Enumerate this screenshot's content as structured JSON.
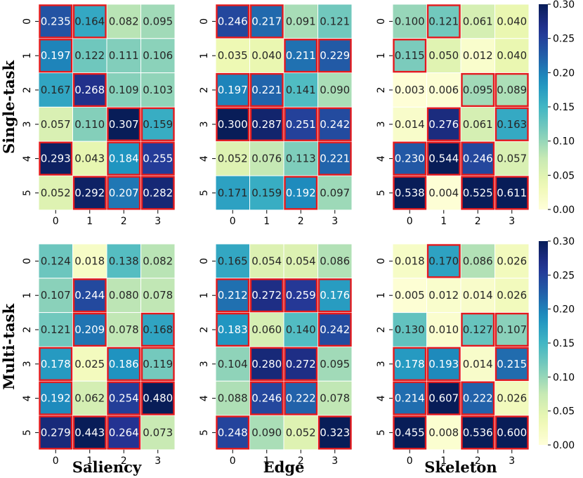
{
  "chart_data": {
    "type": "heatmap",
    "colorscale": {
      "name": "YlGnBu",
      "vmin": 0.0,
      "vmax": 0.3
    },
    "highlight_color": "#e41a1c",
    "x_ticks": [
      "0",
      "1",
      "2",
      "3"
    ],
    "y_ticks": [
      "0",
      "1",
      "2",
      "3",
      "4",
      "5"
    ],
    "colorbar_ticks": [
      "0.00",
      "0.05",
      "0.10",
      "0.15",
      "0.20",
      "0.25",
      "0.30"
    ],
    "row_labels": [
      "Single-task",
      "Multi-task"
    ],
    "col_labels": [
      "Saliency",
      "Edge",
      "Skeleton"
    ],
    "panels": [
      {
        "row": "Single-task",
        "col": "Saliency",
        "values": [
          [
            0.235,
            0.164,
            0.082,
            0.095
          ],
          [
            0.197,
            0.122,
            0.111,
            0.106
          ],
          [
            0.167,
            0.268,
            0.109,
            0.103
          ],
          [
            0.057,
            0.11,
            0.307,
            0.159
          ],
          [
            0.293,
            0.043,
            0.184,
            0.255
          ],
          [
            0.052,
            0.292,
            0.207,
            0.282
          ]
        ],
        "highlighted": [
          [
            1,
            1,
            0,
            0
          ],
          [
            1,
            0,
            0,
            0
          ],
          [
            0,
            1,
            0,
            0
          ],
          [
            0,
            0,
            1,
            1
          ],
          [
            1,
            0,
            1,
            1
          ],
          [
            0,
            1,
            1,
            1
          ]
        ]
      },
      {
        "row": "Single-task",
        "col": "Edge",
        "values": [
          [
            0.246,
            0.217,
            0.091,
            0.121
          ],
          [
            0.035,
            0.04,
            0.211,
            0.229
          ],
          [
            0.197,
            0.221,
            0.141,
            0.09
          ],
          [
            0.3,
            0.287,
            0.251,
            0.242
          ],
          [
            0.052,
            0.076,
            0.113,
            0.221
          ],
          [
            0.171,
            0.159,
            0.192,
            0.097
          ]
        ],
        "highlighted": [
          [
            1,
            1,
            0,
            0
          ],
          [
            0,
            0,
            1,
            1
          ],
          [
            1,
            1,
            0,
            0
          ],
          [
            1,
            1,
            1,
            1
          ],
          [
            0,
            0,
            0,
            1
          ],
          [
            0,
            0,
            1,
            0
          ]
        ]
      },
      {
        "row": "Single-task",
        "col": "Skeleton",
        "values": [
          [
            0.1,
            0.121,
            0.061,
            0.04
          ],
          [
            0.115,
            0.05,
            0.012,
            0.04
          ],
          [
            0.003,
            0.006,
            0.095,
            0.089
          ],
          [
            0.014,
            0.276,
            0.061,
            0.163
          ],
          [
            0.23,
            0.544,
            0.246,
            0.057
          ],
          [
            0.538,
            0.004,
            0.525,
            0.611
          ]
        ],
        "highlighted": [
          [
            0,
            1,
            0,
            0
          ],
          [
            1,
            0,
            0,
            0
          ],
          [
            0,
            0,
            1,
            1
          ],
          [
            0,
            1,
            0,
            1
          ],
          [
            1,
            1,
            1,
            0
          ],
          [
            1,
            0,
            1,
            1
          ]
        ]
      },
      {
        "row": "Multi-task",
        "col": "Saliency",
        "values": [
          [
            0.124,
            0.018,
            0.138,
            0.082
          ],
          [
            0.107,
            0.244,
            0.08,
            0.078
          ],
          [
            0.121,
            0.209,
            0.078,
            0.168
          ],
          [
            0.178,
            0.025,
            0.186,
            0.119
          ],
          [
            0.192,
            0.062,
            0.254,
            0.48
          ],
          [
            0.279,
            0.443,
            0.264,
            0.073
          ]
        ],
        "highlighted": [
          [
            0,
            0,
            0,
            0
          ],
          [
            0,
            1,
            0,
            0
          ],
          [
            0,
            1,
            0,
            1
          ],
          [
            1,
            0,
            1,
            1
          ],
          [
            1,
            0,
            1,
            1
          ],
          [
            1,
            1,
            1,
            0
          ]
        ]
      },
      {
        "row": "Multi-task",
        "col": "Edge",
        "values": [
          [
            0.165,
            0.054,
            0.054,
            0.086
          ],
          [
            0.212,
            0.272,
            0.259,
            0.176
          ],
          [
            0.183,
            0.06,
            0.14,
            0.242
          ],
          [
            0.104,
            0.28,
            0.272,
            0.095
          ],
          [
            0.088,
            0.246,
            0.222,
            0.078
          ],
          [
            0.248,
            0.09,
            0.052,
            0.323
          ]
        ],
        "highlighted": [
          [
            0,
            0,
            0,
            0
          ],
          [
            1,
            1,
            1,
            1
          ],
          [
            1,
            0,
            0,
            1
          ],
          [
            0,
            1,
            1,
            0
          ],
          [
            0,
            1,
            1,
            0
          ],
          [
            1,
            0,
            0,
            1
          ]
        ]
      },
      {
        "row": "Multi-task",
        "col": "Skeleton",
        "values": [
          [
            0.018,
            0.17,
            0.086,
            0.026
          ],
          [
            0.005,
            0.012,
            0.014,
            0.026
          ],
          [
            0.13,
            0.01,
            0.127,
            0.107
          ],
          [
            0.178,
            0.193,
            0.014,
            0.215
          ],
          [
            0.214,
            0.607,
            0.222,
            0.026
          ],
          [
            0.455,
            0.008,
            0.536,
            0.6
          ]
        ],
        "highlighted": [
          [
            0,
            1,
            0,
            0
          ],
          [
            0,
            0,
            0,
            0
          ],
          [
            0,
            0,
            1,
            1
          ],
          [
            1,
            1,
            0,
            1
          ],
          [
            1,
            1,
            1,
            0
          ],
          [
            1,
            0,
            1,
            1
          ]
        ]
      }
    ]
  }
}
